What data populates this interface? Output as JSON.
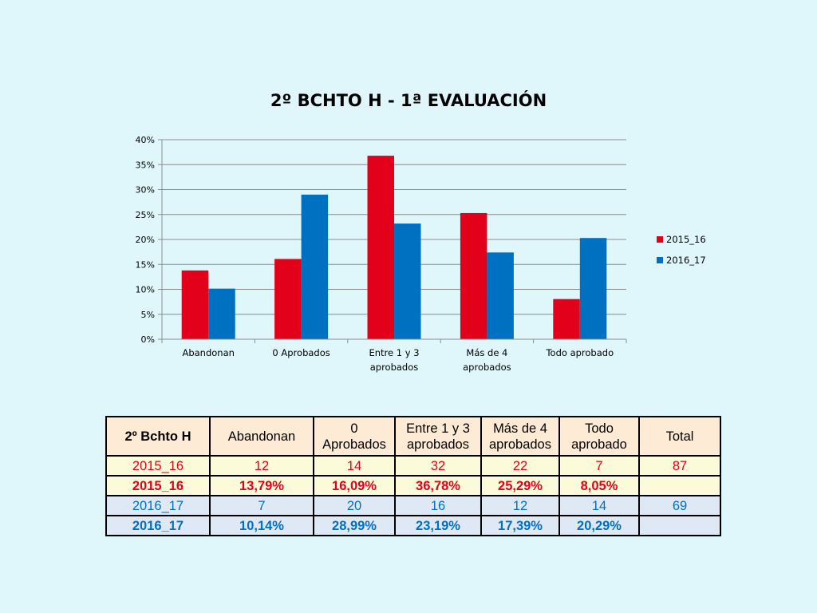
{
  "colors": {
    "background": "#dff7fb",
    "series_2015_16": "#e3001b",
    "series_2016_17": "#0070c0",
    "table_header_bg": "#fdebd6",
    "table_row_2015_bg": "#fbfbda",
    "table_row_2016_bg": "#dfe9f5"
  },
  "chart_data": {
    "type": "bar",
    "title": "2º BCHTO H - 1ª EVALUACIÓN",
    "xlabel": "",
    "ylabel": "",
    "categories": [
      [
        "Abandonan"
      ],
      [
        "0 Aprobados"
      ],
      [
        "Entre 1 y 3",
        "aprobados"
      ],
      [
        "Más de 4",
        "aprobados"
      ],
      [
        "Todo aprobado"
      ]
    ],
    "series": [
      {
        "name": "2015_16",
        "values": [
          13.79,
          16.09,
          36.78,
          25.29,
          8.05
        ]
      },
      {
        "name": "2016_17",
        "values": [
          10.14,
          28.99,
          23.19,
          17.39,
          20.29
        ]
      }
    ],
    "ylim": [
      0,
      40
    ],
    "yticks": [
      "0%",
      "5%",
      "10%",
      "15%",
      "20%",
      "25%",
      "30%",
      "35%",
      "40%"
    ],
    "grid": true,
    "legend": "right"
  },
  "table": {
    "headers": [
      [
        "2º Bchto H"
      ],
      [
        "Abandonan"
      ],
      [
        "0",
        "Aprobados"
      ],
      [
        "Entre 1 y 3",
        "aprobados"
      ],
      [
        "Más de 4",
        "aprobados"
      ],
      [
        "Todo",
        "aprobado"
      ],
      [
        "Total"
      ]
    ],
    "rows": [
      [
        "2015_16",
        "12",
        "14",
        "32",
        "22",
        "7",
        "87"
      ],
      [
        "2015_16",
        "13,79%",
        "16,09%",
        "36,78%",
        "25,29%",
        "8,05%",
        ""
      ],
      [
        "2016_17",
        "7",
        "20",
        "16",
        "12",
        "14",
        "69"
      ],
      [
        "2016_17",
        "10,14%",
        "28,99%",
        "23,19%",
        "17,39%",
        "20,29%",
        ""
      ]
    ]
  }
}
